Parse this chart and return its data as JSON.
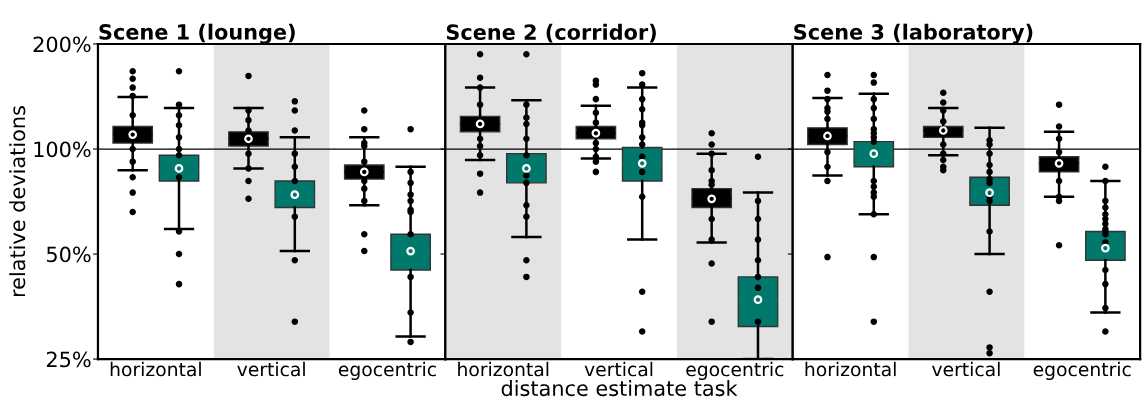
{
  "chart_data": [
    {
      "type": "box",
      "title": "Scene 1 (lounge)",
      "ylabel": "relative deviations",
      "categories": [
        "horizontal",
        "vertical",
        "egocentric"
      ],
      "log": "y",
      "ylim": [
        25,
        200
      ],
      "yticks": [
        {
          "value": 25,
          "label": "25%"
        },
        {
          "value": 50,
          "label": "50%"
        },
        {
          "value": 100,
          "label": "100%"
        },
        {
          "value": 200,
          "label": "200%"
        }
      ],
      "ref_lines": [
        {
          "axis": "y",
          "value": 100,
          "color": "#000000"
        }
      ],
      "bands": [
        {
          "axis": "x",
          "from": "vertical",
          "to": "vertical",
          "color": "#e3e3e3"
        }
      ],
      "series": [
        {
          "color": "#000000",
          "boxes": [
            {
              "low": 87,
              "q1": 104,
              "median": 110,
              "q3": 116,
              "high": 141,
              "mean": 110,
              "outliers": [
                167,
                159,
                150,
                142,
                125,
                100,
                92,
                83,
                75,
                66
              ]
            },
            {
              "low": 88,
              "q1": 102,
              "median": 107,
              "q3": 112,
              "high": 131,
              "mean": 107,
              "outliers": [
                162,
                129,
                121,
                113,
                97,
                88,
                81,
                72
              ]
            },
            {
              "low": 69,
              "q1": 82,
              "median": 86,
              "q3": 90,
              "high": 108,
              "mean": 86,
              "outliers": [
                129,
                114,
                104,
                102,
                92,
                81,
                77,
                71,
                57,
                51
              ]
            }
          ]
        },
        {
          "color": "#00786c",
          "boxes": [
            {
              "low": 59,
              "q1": 81,
              "median": 88,
              "q3": 96,
              "high": 131,
              "mean": 88,
              "outliers": [
                167,
                134,
                125,
                117,
                108,
                100,
                96,
                83,
                58,
                50,
                41
              ]
            },
            {
              "low": 51,
              "q1": 68,
              "median": 74,
              "q3": 81,
              "high": 108,
              "mean": 74,
              "outliers": [
                137,
                129,
                113,
                97,
                89,
                81,
                64,
                48,
                32
              ]
            },
            {
              "low": 29,
              "q1": 45,
              "median": 51,
              "q3": 57,
              "high": 89,
              "mean": 51,
              "outliers": [
                114,
                86,
                80,
                74,
                71,
                67,
                66,
                57,
                43,
                34,
                28
              ]
            }
          ]
        }
      ]
    },
    {
      "type": "box",
      "title": "Scene 2 (corridor)",
      "xlabel": "distance estimate task",
      "categories": [
        "horizontal",
        "vertical",
        "egocentric"
      ],
      "log": "y",
      "ylim": [
        25,
        200
      ],
      "yticks": [
        {
          "value": 25,
          "label": null
        },
        {
          "value": 50,
          "label": null
        },
        {
          "value": 100,
          "label": null
        },
        {
          "value": 200,
          "label": null
        }
      ],
      "tick_labels": "x",
      "ref_lines": [
        {
          "axis": "y",
          "value": 100,
          "color": "#000000"
        }
      ],
      "bands": [
        {
          "axis": "x",
          "from": "horizontal",
          "to": "horizontal",
          "color": "#e3e3e3"
        },
        {
          "axis": "x",
          "from": "egocentric",
          "to": "egocentric",
          "color": "#e3e3e3"
        }
      ],
      "series": [
        {
          "color": "#000000",
          "boxes": [
            {
              "low": 93,
              "q1": 112,
              "median": 118,
              "q3": 124,
              "high": 150,
              "mean": 118,
              "outliers": [
                187,
                160,
                150,
                134,
                107,
                102,
                96,
                85,
                75
              ]
            },
            {
              "low": 94,
              "q1": 107,
              "median": 111,
              "q3": 116,
              "high": 133,
              "mean": 111,
              "outliers": [
                157,
                153,
                139,
                127,
                119,
                104,
                100,
                95,
                92,
                86
              ]
            },
            {
              "low": 54,
              "q1": 68,
              "median": 72,
              "q3": 77,
              "high": 97,
              "mean": 72,
              "outliers": [
                111,
                103,
                97,
                87,
                81,
                79,
                63,
                55,
                47,
                32
              ]
            }
          ]
        },
        {
          "color": "#00786c",
          "boxes": [
            {
              "low": 56,
              "q1": 80,
              "median": 88,
              "q3": 97,
              "high": 138,
              "mean": 88,
              "outliers": [
                187,
                134,
                123,
                118,
                107,
                96,
                84,
                80,
                69,
                64,
                48,
                43
              ]
            },
            {
              "low": 55,
              "q1": 81,
              "median": 91,
              "q3": 101,
              "high": 150,
              "mean": 91,
              "outliers": [
                165,
                153,
                139,
                130,
                119,
                117,
                108,
                103,
                95,
                86,
                73,
                39,
                30
              ]
            },
            {
              "low": 25,
              "q1": 31,
              "median": 37,
              "q3": 43,
              "high": 75,
              "mean": 37,
              "outliers": [
                95,
                71,
                63,
                55,
                48,
                43,
                40,
                32
              ]
            }
          ]
        }
      ]
    },
    {
      "type": "box",
      "title": "Scene 3 (laboratory)",
      "categories": [
        "horizontal",
        "vertical",
        "egocentric"
      ],
      "log": "y",
      "ylim": [
        25,
        200
      ],
      "yticks": [
        {
          "value": 25,
          "label": null
        },
        {
          "value": 50,
          "label": null
        },
        {
          "value": 100,
          "label": null
        },
        {
          "value": 200,
          "label": null
        }
      ],
      "tick_labels": "x",
      "ref_lines": [
        {
          "axis": "y",
          "value": 100,
          "color": "#000000"
        }
      ],
      "bands": [
        {
          "axis": "x",
          "from": "vertical",
          "to": "vertical",
          "color": "#e3e3e3"
        }
      ],
      "series": [
        {
          "color": "#000000",
          "boxes": [
            {
              "low": 84,
              "q1": 103,
              "median": 109,
              "q3": 115,
              "high": 140,
              "mean": 109,
              "outliers": [
                163,
                147,
                139,
                131,
                128,
                122,
                98,
                89,
                81,
                49
              ]
            },
            {
              "low": 96,
              "q1": 108,
              "median": 113,
              "q3": 116,
              "high": 131,
              "mean": 113,
              "outliers": [
                145,
                136,
                129,
                120,
                103,
                97,
                93,
                89,
                87
              ]
            },
            {
              "low": 73,
              "q1": 86,
              "median": 91,
              "q3": 95,
              "high": 112,
              "mean": 91,
              "outliers": [
                134,
                116,
                107,
                98,
                81,
                73,
                71,
                53
              ]
            }
          ]
        },
        {
          "color": "#00786c",
          "boxes": [
            {
              "low": 65,
              "q1": 89,
              "median": 97,
              "q3": 105,
              "high": 144,
              "mean": 97,
              "outliers": [
                163,
                155,
                139,
                131,
                122,
                114,
                111,
                108,
                105,
                81,
                78,
                75,
                73,
                65,
                49,
                32
              ]
            },
            {
              "low": 50,
              "q1": 69,
              "median": 75,
              "q3": 83,
              "high": 115,
              "mean": 75,
              "outliers": [
                106,
                103,
                97,
                90,
                86,
                82,
                80,
                73,
                71,
                58,
                39,
                27,
                26
              ]
            },
            {
              "low": 34,
              "q1": 48,
              "median": 52,
              "q3": 58,
              "high": 81,
              "mean": 52,
              "outliers": [
                89,
                81,
                71,
                68,
                65,
                63,
                61,
                59,
                58,
                57,
                54,
                45,
                41,
                35,
                30
              ]
            }
          ]
        }
      ]
    }
  ]
}
